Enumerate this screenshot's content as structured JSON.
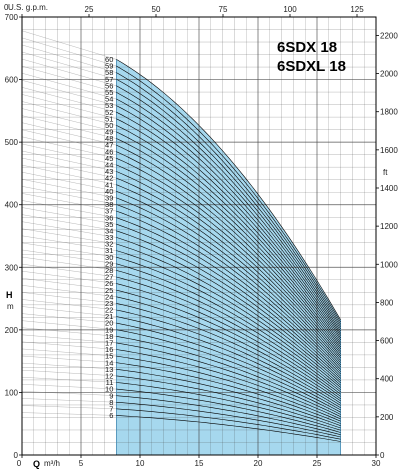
{
  "chart_data": {
    "type": "line",
    "title_lines": [
      "6SDX 18",
      "6SDXL 18"
    ],
    "x_unit_top": "U.S. g.p.m.",
    "x_label_bottom_symbol": "Q",
    "x_unit_bottom": "m³/h",
    "y_label_left_symbol": "H",
    "y_unit_left": "m",
    "y_unit_right": "ft",
    "xlim": [
      0,
      30
    ],
    "ylim": [
      0,
      700
    ],
    "x_ticks_bottom": [
      "0",
      "5",
      "10",
      "15",
      "20",
      "25",
      "30"
    ],
    "x_ticks_top": [
      "0",
      "25",
      "50",
      "75",
      "100",
      "125"
    ],
    "y_ticks_left": [
      "0",
      "100",
      "200",
      "300",
      "400",
      "500",
      "600",
      "700"
    ],
    "y_ticks_right": [
      "0",
      "200",
      "400",
      "600",
      "800",
      "1000",
      "1200",
      "1400",
      "1600",
      "1800",
      "2000",
      "2200"
    ],
    "operating_range_q": [
      8,
      27
    ],
    "stage_min": 6,
    "stage_max": 60,
    "stage_head_at_q0_m": 11.3,
    "stage_head_at_q27_m": 3.6,
    "stage_labels": [
      "6",
      "7",
      "8",
      "9",
      "10",
      "11",
      "12",
      "13",
      "14",
      "15",
      "16",
      "17",
      "18",
      "19",
      "20",
      "21",
      "22",
      "23",
      "24",
      "25",
      "26",
      "27",
      "28",
      "29",
      "30",
      "31",
      "32",
      "33",
      "34",
      "35",
      "36",
      "37",
      "38",
      "39",
      "40",
      "41",
      "42",
      "43",
      "44",
      "45",
      "46",
      "47",
      "48",
      "49",
      "50",
      "51",
      "52",
      "53",
      "54",
      "55",
      "56",
      "57",
      "58",
      "59",
      "60"
    ],
    "colors": {
      "range_fill": "#a6d8ee",
      "range_edge": "#4a8fb8",
      "curve": "#000000",
      "grid": "#444444"
    }
  }
}
